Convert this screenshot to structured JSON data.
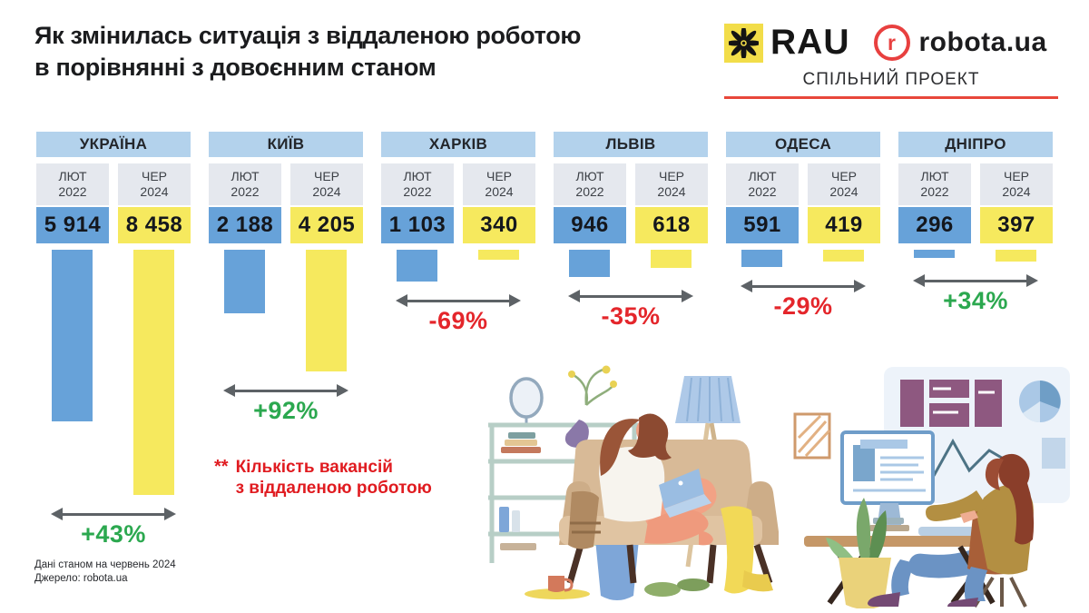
{
  "header": {
    "title_line1": "Як змінилась ситуація з віддаленою роботою",
    "title_line2": "в порівнянні з довоєнним станом",
    "rau_logo_text": "RAU",
    "robota_icon_letter": "r",
    "robota_logo_text": "robota.ua",
    "joint_project_label": "СПІЛЬНИЙ ПРОЕКТ"
  },
  "chart_data": {
    "type": "bar",
    "title": "Як змінилась ситуація з віддаленою роботою в порівнянні з довоєнним станом",
    "ylabel": "Кількість вакансій з віддаленою роботою",
    "categories": [
      "УКРАЇНА",
      "КИЇВ",
      "ХАРКІВ",
      "ЛЬВІВ",
      "ОДЕСА",
      "ДНІПРО"
    ],
    "series": [
      {
        "name": "ЛЮТ 2022",
        "color": "#67a2d9",
        "values": [
          5914,
          2188,
          1103,
          946,
          591,
          296
        ],
        "labels": [
          "5 914",
          "2 188",
          "1 103",
          "946",
          "591",
          "296"
        ]
      },
      {
        "name": "ЧЕР 2024",
        "color": "#f6e95e",
        "values": [
          8458,
          4205,
          340,
          618,
          419,
          397
        ],
        "labels": [
          "8 458",
          "4 205",
          "340",
          "618",
          "419",
          "397"
        ]
      }
    ],
    "changes": [
      {
        "label": "+43%",
        "direction": "up"
      },
      {
        "label": "+92%",
        "direction": "up"
      },
      {
        "label": "-69%",
        "direction": "down"
      },
      {
        "label": "-35%",
        "direction": "down"
      },
      {
        "label": "-29%",
        "direction": "down"
      },
      {
        "label": "+34%",
        "direction": "up"
      }
    ],
    "period_header": {
      "feb_month": "ЛЮТ",
      "feb_year": "2022",
      "jun_month": "ЧЕР",
      "jun_year": "2024"
    },
    "colors": {
      "positive": "#2ba84f",
      "negative": "#e4262b",
      "category_bg": "#b3d2ec",
      "period_bg": "#e5e8ee",
      "arrow": "#5d6266"
    },
    "bars_hang_down": true,
    "grid": false,
    "legend_position": "none"
  },
  "note": {
    "marker": "**",
    "line1": "Кількість вакансій",
    "line2": "з віддаленою роботою"
  },
  "footer": {
    "line1": "Дані станом на червень 2024",
    "line2": "Джерело: robota.ua"
  }
}
